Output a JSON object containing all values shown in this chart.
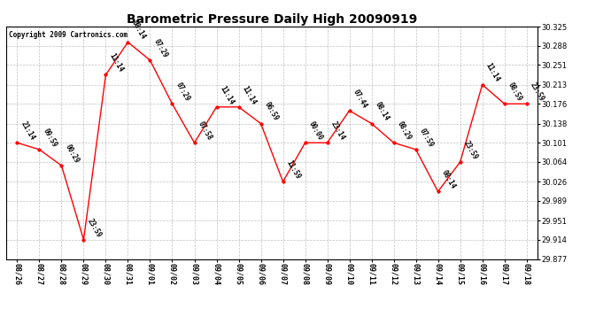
{
  "title": "Barometric Pressure Daily High 20090919",
  "copyright": "Copyright 2009 Cartronics.com",
  "x_labels": [
    "08/26",
    "08/27",
    "08/28",
    "08/29",
    "08/30",
    "08/31",
    "09/01",
    "09/02",
    "09/03",
    "09/04",
    "09/05",
    "09/06",
    "09/07",
    "09/08",
    "09/09",
    "09/10",
    "09/11",
    "09/12",
    "09/13",
    "09/14",
    "09/15",
    "09/16",
    "09/17",
    "09/18"
  ],
  "y_values": [
    30.101,
    30.088,
    30.057,
    29.914,
    30.232,
    30.295,
    30.26,
    30.176,
    30.101,
    30.17,
    30.17,
    30.138,
    30.026,
    30.101,
    30.101,
    30.163,
    30.138,
    30.101,
    30.088,
    30.007,
    30.064,
    30.213,
    30.176,
    30.176
  ],
  "point_labels": [
    "21:14",
    "09:59",
    "00:29",
    "23:59",
    "11:14",
    "08:14",
    "07:29",
    "07:29",
    "07:58",
    "11:14",
    "11:14",
    "06:59",
    "11:59",
    "00:00",
    "23:14",
    "07:44",
    "08:14",
    "08:29",
    "07:59",
    "08:14",
    "23:59",
    "11:14",
    "08:59",
    "23:59"
  ],
  "y_min": 29.877,
  "y_max": 30.325,
  "y_ticks": [
    29.877,
    29.914,
    29.951,
    29.989,
    30.026,
    30.064,
    30.101,
    30.138,
    30.176,
    30.213,
    30.251,
    30.288,
    30.325
  ],
  "line_color": "red",
  "marker_color": "red",
  "marker_size": 2.5,
  "bg_color": "#ffffff",
  "plot_bg_color": "#ffffff",
  "grid_color": "#b0b0b0",
  "title_fontsize": 10,
  "tick_fontsize": 6,
  "annotation_fontsize": 5.5,
  "copyright_fontsize": 5.5
}
